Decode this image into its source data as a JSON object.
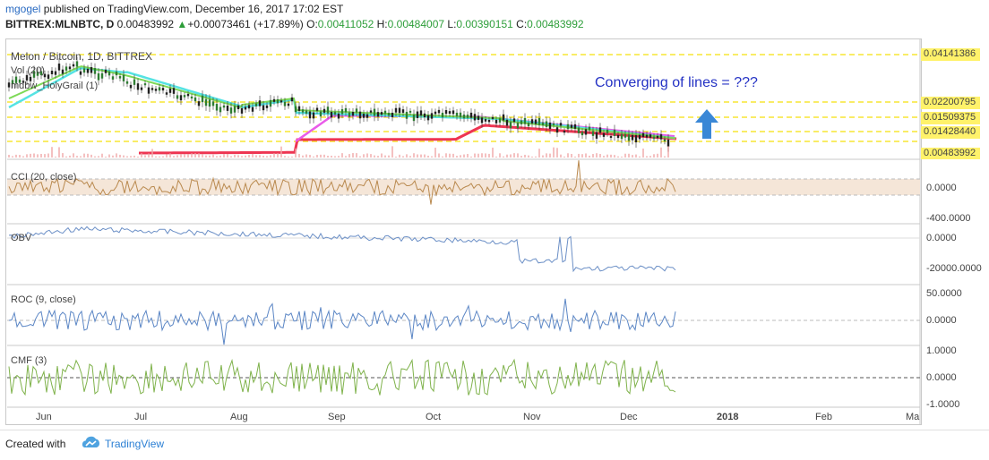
{
  "header": {
    "user": "mgogel",
    "published": "published on TradingView.com, December 16, 2017 17:02 EST",
    "symbol": "BITTREX:MLNBTC, D",
    "price": "0.00483992",
    "change": "+0.00073461 (+17.89%)",
    "o_label": "O:",
    "o": "0.00411052",
    "h_label": "H:",
    "h": "0.00484007",
    "l_label": "L:",
    "l": "0.00390151",
    "c_label": "C:",
    "c": "0.00483992"
  },
  "legend": {
    "title": "Melon / Bitcoin, 1D, BITTREX",
    "vol": "Vol (20)",
    "indicator": "mdbw_HolyGrail (1)"
  },
  "annotation": "Converging of lines = ???",
  "price_scale": [
    "0.04141386",
    "0.02200795",
    "0.01509375",
    "0.01428440",
    "0.00483992"
  ],
  "panes": {
    "cci": {
      "label": "CCI (20, close)",
      "scale": [
        "0.0000",
        "-400.0000"
      ]
    },
    "obv": {
      "label": "OBV",
      "scale": [
        "0.0000",
        "-20000.0000"
      ]
    },
    "roc": {
      "label": "ROC (9, close)",
      "scale": [
        "50.0000",
        "0.0000"
      ]
    },
    "cmf": {
      "label": "CMF (3)",
      "scale": [
        "1.0000",
        "0.0000",
        "-1.0000"
      ]
    }
  },
  "time_axis": [
    "Jun",
    "Jul",
    "Aug",
    "Sep",
    "Oct",
    "Nov",
    "Dec",
    "2018",
    "Feb",
    "Ma"
  ],
  "footer": {
    "created": "Created with",
    "brand": "TradingView"
  },
  "colors": {
    "yellow_line": "#f5e10a",
    "ma_red": "#ee3552",
    "ma_magenta": "#e95be9",
    "ma_green": "#7ed957",
    "ma_cyan": "#55e3e3",
    "arrow": "#3a87d6",
    "annotation": "#2432c4",
    "cci": "#b9894e",
    "obv": "#6b8fc6",
    "roc": "#5b86c5",
    "cmf": "#7fb24b"
  }
}
